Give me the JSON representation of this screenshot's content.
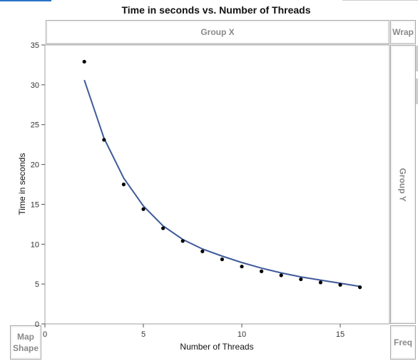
{
  "chart_data": {
    "type": "scatter",
    "title": "Time in seconds vs. Number of Threads",
    "xlabel": "Number of Threads",
    "ylabel": "Time in seconds",
    "xlim": [
      0,
      17.5
    ],
    "ylim": [
      0,
      35
    ],
    "xticks": [
      0,
      5,
      10,
      15
    ],
    "yticks": [
      0,
      5,
      10,
      15,
      20,
      25,
      30,
      35
    ],
    "grid": false,
    "series": [
      {
        "type": "scatter",
        "color": "#000000",
        "x": [
          2,
          3,
          4,
          5,
          6,
          7,
          8,
          9,
          10,
          11,
          12,
          13,
          14,
          15,
          16
        ],
        "y": [
          32.9,
          23.1,
          17.5,
          14.4,
          12.0,
          10.4,
          9.1,
          8.1,
          7.2,
          6.6,
          6.1,
          5.6,
          5.2,
          4.9,
          4.6
        ]
      },
      {
        "type": "line",
        "color": "#3f5a9a",
        "x": [
          2,
          3,
          4,
          5,
          6,
          7,
          8,
          9,
          10,
          11,
          12,
          13,
          14,
          15,
          16
        ],
        "y": [
          30.6,
          23.3,
          18.3,
          14.8,
          12.3,
          10.6,
          9.4,
          8.5,
          7.7,
          7.0,
          6.4,
          5.9,
          5.5,
          5.1,
          4.7
        ]
      }
    ]
  },
  "zones": {
    "group_x": "Group X",
    "group_y": "Group Y",
    "wrap": "Wrap",
    "map_shape_line1": "Map",
    "map_shape_line2": "Shape",
    "freq": "Freq"
  }
}
